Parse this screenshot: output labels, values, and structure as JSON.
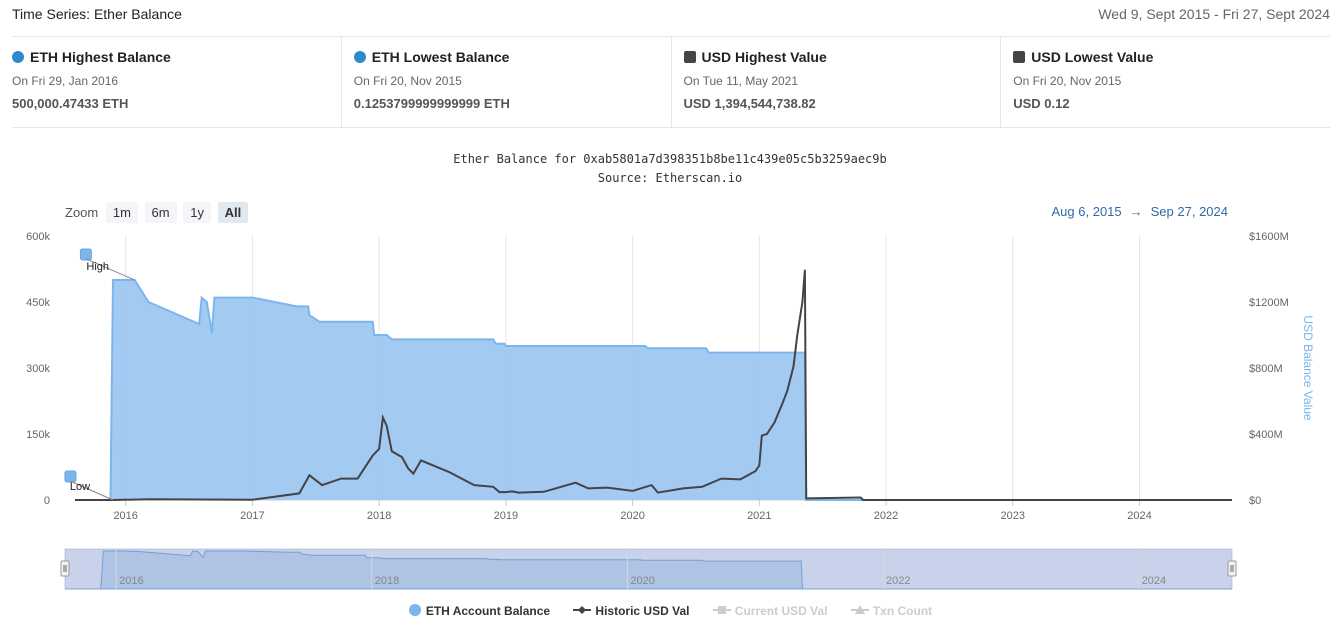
{
  "header": {
    "title": "Time Series: Ether Balance",
    "date_range": "Wed 9, Sept 2015 - Fri 27, Sept 2024"
  },
  "stats": [
    {
      "label": "ETH Highest Balance",
      "marker": "circle",
      "color": "#2f8ac9",
      "date": "On Fri 29, Jan 2016",
      "value": "500,000.47433 ETH"
    },
    {
      "label": "ETH Lowest Balance",
      "marker": "circle",
      "color": "#2f8ac9",
      "date": "On Fri 20, Nov 2015",
      "value": "0.1253799999999999 ETH"
    },
    {
      "label": "USD Highest Value",
      "marker": "square",
      "color": "#444444",
      "date": "On Tue 11, May 2021",
      "value": "USD 1,394,544,738.82"
    },
    {
      "label": "USD Lowest Value",
      "marker": "square",
      "color": "#444444",
      "date": "On Fri 20, Nov 2015",
      "value": "USD 0.12"
    }
  ],
  "chart_title": "Ether Balance for 0xab5801a7d398351b8be11c439e05c5b3259aec9b",
  "chart_subtitle": "Source: Etherscan.io",
  "zoom": {
    "label": "Zoom",
    "buttons": [
      "1m",
      "6m",
      "1y",
      "All"
    ],
    "active": "All"
  },
  "range_display": {
    "from": "Aug 6, 2015",
    "arrow": "→",
    "to": "Sep 27, 2024"
  },
  "legend": [
    {
      "label": "ETH Account Balance",
      "symbol": "circle",
      "color": "#7cb5ec",
      "enabled": true
    },
    {
      "label": "Historic USD Val",
      "symbol": "line-diamond",
      "color": "#434348",
      "enabled": true
    },
    {
      "label": "Current USD Val",
      "symbol": "line-square",
      "color": "#cccccc",
      "enabled": false
    },
    {
      "label": "Txn Count",
      "symbol": "line-triangle",
      "color": "#cccccc",
      "enabled": false
    }
  ],
  "flags": [
    {
      "label": "High"
    },
    {
      "label": "Low"
    }
  ],
  "chart_data": {
    "type": "area",
    "y_left": {
      "ticks": [
        "0",
        "150k",
        "300k",
        "450k",
        "600k"
      ],
      "tick_values": [
        0,
        150000,
        300000,
        450000,
        600000
      ],
      "min": 0,
      "max": 600000
    },
    "y_right": {
      "ticks": [
        "$0",
        "$400M",
        "$800M",
        "$1200M",
        "$1600M"
      ],
      "tick_values": [
        0,
        400,
        800,
        1200,
        1600
      ],
      "min": 0,
      "max": 1600,
      "title": "USD Balance Value"
    },
    "x_ticks": [
      "2016",
      "2017",
      "2018",
      "2019",
      "2020",
      "2021",
      "2022",
      "2023",
      "2024"
    ],
    "x_tick_values": [
      2016,
      2017,
      2018,
      2019,
      2020,
      2021,
      2022,
      2023,
      2024
    ],
    "x_min": 2015.6,
    "x_max": 2024.73,
    "navigator_ticks": [
      "2016",
      "2018",
      "2020",
      "2022",
      "2024"
    ],
    "navigator_tick_values": [
      2016,
      2018,
      2020,
      2022,
      2024
    ],
    "series": [
      {
        "name": "ETH Account Balance",
        "axis": "left",
        "color": "#7cb5ec",
        "points": [
          [
            2015.6,
            0
          ],
          [
            2015.88,
            0
          ],
          [
            2015.9,
            500000
          ],
          [
            2016.07,
            500000
          ],
          [
            2016.18,
            450000
          ],
          [
            2016.58,
            400000
          ],
          [
            2016.6,
            460000
          ],
          [
            2016.64,
            450000
          ],
          [
            2016.68,
            380000
          ],
          [
            2016.7,
            460000
          ],
          [
            2017.0,
            460000
          ],
          [
            2017.35,
            440000
          ],
          [
            2017.44,
            440000
          ],
          [
            2017.45,
            420000
          ],
          [
            2017.53,
            405000
          ],
          [
            2017.95,
            405000
          ],
          [
            2017.96,
            375000
          ],
          [
            2018.06,
            375000
          ],
          [
            2018.1,
            365000
          ],
          [
            2018.9,
            365000
          ],
          [
            2018.92,
            355000
          ],
          [
            2018.99,
            355000
          ],
          [
            2019.0,
            350000
          ],
          [
            2020.1,
            350000
          ],
          [
            2020.12,
            345000
          ],
          [
            2020.58,
            345000
          ],
          [
            2020.6,
            335000
          ],
          [
            2021.36,
            335000
          ],
          [
            2021.37,
            0
          ],
          [
            2024.73,
            0
          ]
        ]
      },
      {
        "name": "Historic USD Val",
        "axis": "right",
        "color": "#434348",
        "points": [
          [
            2015.6,
            0
          ],
          [
            2015.9,
            0
          ],
          [
            2016.2,
            5
          ],
          [
            2016.6,
            3
          ],
          [
            2017.0,
            2
          ],
          [
            2017.37,
            40
          ],
          [
            2017.45,
            150
          ],
          [
            2017.55,
            90
          ],
          [
            2017.7,
            130
          ],
          [
            2017.83,
            130
          ],
          [
            2017.95,
            270
          ],
          [
            2018.0,
            310
          ],
          [
            2018.03,
            500
          ],
          [
            2018.06,
            450
          ],
          [
            2018.1,
            295
          ],
          [
            2018.18,
            260
          ],
          [
            2018.23,
            190
          ],
          [
            2018.27,
            160
          ],
          [
            2018.33,
            240
          ],
          [
            2018.55,
            170
          ],
          [
            2018.75,
            90
          ],
          [
            2018.9,
            80
          ],
          [
            2018.95,
            48
          ],
          [
            2019.0,
            48
          ],
          [
            2019.05,
            52
          ],
          [
            2019.1,
            45
          ],
          [
            2019.3,
            50
          ],
          [
            2019.55,
            105
          ],
          [
            2019.65,
            70
          ],
          [
            2019.8,
            75
          ],
          [
            2020.0,
            55
          ],
          [
            2020.15,
            90
          ],
          [
            2020.2,
            45
          ],
          [
            2020.4,
            70
          ],
          [
            2020.55,
            80
          ],
          [
            2020.7,
            130
          ],
          [
            2020.85,
            125
          ],
          [
            2020.97,
            175
          ],
          [
            2021.0,
            210
          ],
          [
            2021.02,
            390
          ],
          [
            2021.06,
            400
          ],
          [
            2021.12,
            470
          ],
          [
            2021.18,
            580
          ],
          [
            2021.22,
            660
          ],
          [
            2021.27,
            810
          ],
          [
            2021.3,
            1000
          ],
          [
            2021.34,
            1200
          ],
          [
            2021.36,
            1395
          ],
          [
            2021.37,
            10
          ],
          [
            2021.8,
            15
          ],
          [
            2021.82,
            0
          ],
          [
            2024.73,
            0
          ]
        ]
      }
    ]
  }
}
